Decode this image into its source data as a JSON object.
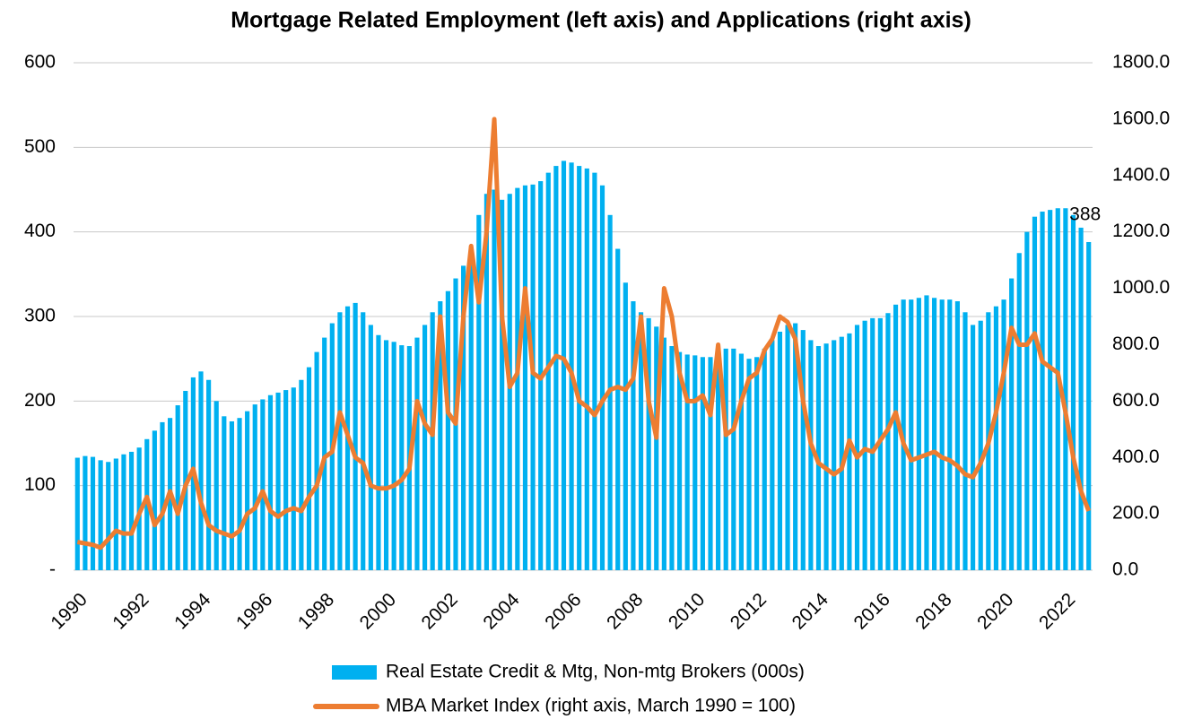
{
  "chart_data": {
    "type": "combo",
    "title": "Mortgage Related Employment (left axis) and Applications (right axis)",
    "categories": [
      "1990",
      null,
      null,
      null,
      null,
      null,
      null,
      null,
      "1992",
      null,
      null,
      null,
      null,
      null,
      null,
      null,
      "1994",
      null,
      null,
      null,
      null,
      null,
      null,
      null,
      "1996",
      null,
      null,
      null,
      null,
      null,
      null,
      null,
      "1998",
      null,
      null,
      null,
      null,
      null,
      null,
      null,
      "2000",
      null,
      null,
      null,
      null,
      null,
      null,
      null,
      "2002",
      null,
      null,
      null,
      null,
      null,
      null,
      null,
      "2004",
      null,
      null,
      null,
      null,
      null,
      null,
      null,
      "2006",
      null,
      null,
      null,
      null,
      null,
      null,
      null,
      "2008",
      null,
      null,
      null,
      null,
      null,
      null,
      null,
      "2010",
      null,
      null,
      null,
      null,
      null,
      null,
      null,
      "2012",
      null,
      null,
      null,
      null,
      null,
      null,
      null,
      "2014",
      null,
      null,
      null,
      null,
      null,
      null,
      null,
      "2016",
      null,
      null,
      null,
      null,
      null,
      null,
      null,
      "2018",
      null,
      null,
      null,
      null,
      null,
      null,
      null,
      "2020",
      null,
      null,
      null,
      null,
      null,
      null,
      null,
      "2022",
      null,
      null,
      null
    ],
    "series": [
      {
        "name": "Real Estate Credit & Mtg, Non-mtg Brokers (000s)",
        "type": "bar",
        "color": "#00b0f0",
        "values": [
          133,
          135,
          134,
          130,
          128,
          132,
          137,
          140,
          145,
          155,
          165,
          175,
          180,
          195,
          212,
          228,
          235,
          225,
          200,
          182,
          176,
          180,
          188,
          196,
          202,
          207,
          210,
          213,
          216,
          225,
          240,
          258,
          275,
          292,
          305,
          312,
          316,
          305,
          290,
          278,
          272,
          270,
          266,
          265,
          275,
          290,
          305,
          318,
          330,
          345,
          360,
          380,
          420,
          445,
          450,
          438,
          445,
          452,
          455,
          456,
          460,
          470,
          478,
          484,
          482,
          478,
          475,
          470,
          455,
          420,
          380,
          340,
          318,
          305,
          298,
          288,
          275,
          265,
          258,
          255,
          254,
          252,
          252,
          255,
          262,
          262,
          256,
          250,
          252,
          262,
          272,
          282,
          290,
          292,
          284,
          272,
          265,
          268,
          272,
          276,
          280,
          290,
          295,
          298,
          298,
          304,
          314,
          320,
          320,
          322,
          325,
          322,
          320,
          320,
          318,
          305,
          290,
          295,
          305,
          312,
          320,
          345,
          375,
          400,
          418,
          424,
          426,
          428,
          428,
          420,
          405,
          388
        ]
      },
      {
        "name": "MBA Market Index (right axis, March 1990 = 100)",
        "type": "line",
        "axis": "y2",
        "color": "#ed7d31",
        "values": [
          100,
          95,
          90,
          80,
          110,
          140,
          130,
          130,
          200,
          260,
          160,
          200,
          280,
          200,
          300,
          360,
          240,
          160,
          140,
          130,
          120,
          140,
          200,
          220,
          280,
          210,
          190,
          210,
          220,
          210,
          260,
          300,
          400,
          420,
          560,
          480,
          400,
          380,
          300,
          290,
          290,
          300,
          320,
          360,
          600,
          520,
          480,
          900,
          560,
          520,
          900,
          1150,
          950,
          1200,
          1600,
          900,
          650,
          700,
          1000,
          700,
          680,
          720,
          760,
          750,
          700,
          600,
          580,
          550,
          600,
          640,
          650,
          640,
          680,
          900,
          600,
          470,
          1000,
          900,
          700,
          600,
          600,
          620,
          550,
          800,
          480,
          500,
          600,
          680,
          700,
          780,
          820,
          900,
          880,
          820,
          600,
          450,
          380,
          360,
          340,
          360,
          460,
          400,
          430,
          420,
          460,
          500,
          560,
          450,
          390,
          400,
          410,
          420,
          400,
          390,
          370,
          340,
          330,
          380,
          450,
          560,
          700,
          860,
          800,
          800,
          840,
          740,
          720,
          700,
          560,
          400,
          280,
          210
        ]
      }
    ],
    "annotation": "388",
    "ylim": [
      0,
      600
    ],
    "yticks": [
      {
        "value": 0,
        "label": "-"
      },
      100,
      200,
      300,
      400,
      500,
      600
    ],
    "y2lim": [
      0,
      1800
    ],
    "y2ticks": [
      {
        "value": 0,
        "label": "0.0"
      },
      {
        "value": 200,
        "label": "200.0"
      },
      {
        "value": 400,
        "label": "400.0"
      },
      {
        "value": 600,
        "label": "600.0"
      },
      {
        "value": 800,
        "label": "800.0"
      },
      {
        "value": 1000,
        "label": "1000.0"
      },
      {
        "value": 1200,
        "label": "1200.0"
      },
      {
        "value": 1400,
        "label": "1400.0"
      },
      {
        "value": 1600,
        "label": "1600.0"
      },
      {
        "value": 1800,
        "label": "1800.0"
      }
    ],
    "grid": true
  }
}
